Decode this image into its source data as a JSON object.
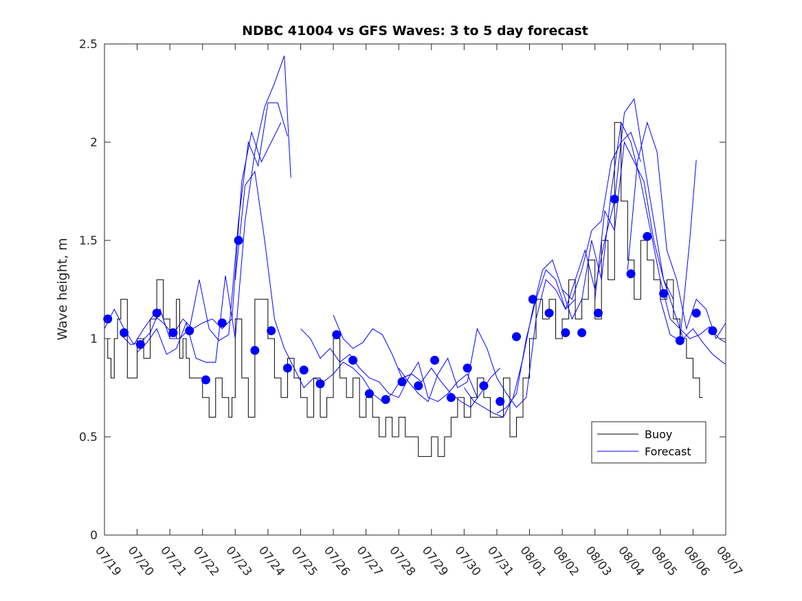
{
  "chart_data": {
    "type": "line",
    "title": "NDBC 41004 vs GFS Waves: 3 to 5 day forecast",
    "xlabel": "",
    "ylabel": "Wave height, m",
    "x_tick_labels": [
      "07/19",
      "07/20",
      "07/21",
      "07/22",
      "07/23",
      "07/24",
      "07/25",
      "07/26",
      "07/27",
      "07/28",
      "07/29",
      "07/30",
      "07/31",
      "08/01",
      "08/02",
      "08/03",
      "08/04",
      "08/05",
      "08/06",
      "08/07"
    ],
    "x_range_days": [
      0,
      19
    ],
    "ylim": [
      0,
      2.5
    ],
    "y_ticks": [
      0,
      0.5,
      1,
      1.5,
      2,
      2.5
    ],
    "y_tick_labels": [
      "0",
      "0.5",
      "1",
      "1.5",
      "2",
      "2.5"
    ],
    "grid": false,
    "legend": {
      "position": "bottom-right",
      "entries": [
        {
          "label": "Buoy",
          "color": "#000000"
        },
        {
          "label": "Forecast",
          "color": "#0000ff"
        }
      ]
    },
    "series": [
      {
        "name": "Buoy",
        "color": "#000000",
        "style": "step-line",
        "x": [
          0.0,
          0.1,
          0.2,
          0.3,
          0.4,
          0.5,
          0.7,
          0.9,
          1.0,
          1.2,
          1.4,
          1.6,
          1.8,
          2.0,
          2.2,
          2.3,
          2.4,
          2.5,
          2.6,
          2.8,
          3.0,
          3.2,
          3.4,
          3.6,
          3.8,
          3.9,
          4.0,
          4.2,
          4.4,
          4.6,
          4.8,
          5.0,
          5.2,
          5.4,
          5.6,
          5.8,
          6.0,
          6.2,
          6.4,
          6.6,
          6.8,
          7.0,
          7.2,
          7.4,
          7.6,
          7.8,
          8.0,
          8.2,
          8.4,
          8.6,
          8.8,
          9.0,
          9.2,
          9.4,
          9.6,
          9.8,
          10.0,
          10.2,
          10.4,
          10.6,
          10.8,
          11.0,
          11.2,
          11.4,
          11.6,
          11.8,
          12.0,
          12.2,
          12.4,
          12.6,
          12.8,
          13.0,
          13.2,
          13.4,
          13.6,
          13.8,
          14.0,
          14.2,
          14.4,
          14.6,
          14.8,
          15.0,
          15.2,
          15.4,
          15.6,
          15.8,
          16.0,
          16.2,
          16.4,
          16.6,
          16.8,
          17.0,
          17.2,
          17.4,
          17.6,
          17.8,
          18.0,
          18.2
        ],
        "y": [
          1.0,
          0.9,
          0.8,
          1.0,
          1.1,
          1.2,
          0.8,
          0.8,
          1.0,
          0.9,
          1.1,
          1.3,
          1.1,
          1.0,
          1.2,
          0.9,
          1.0,
          0.9,
          0.8,
          0.8,
          0.7,
          0.6,
          0.8,
          0.7,
          0.6,
          0.7,
          1.1,
          0.8,
          0.6,
          1.2,
          1.2,
          1.0,
          0.8,
          0.7,
          0.9,
          0.8,
          0.7,
          0.6,
          0.8,
          0.6,
          0.7,
          1.0,
          0.8,
          0.7,
          0.8,
          0.6,
          0.7,
          0.6,
          0.5,
          0.6,
          0.5,
          0.6,
          0.5,
          0.5,
          0.4,
          0.4,
          0.5,
          0.4,
          0.5,
          0.6,
          0.7,
          0.6,
          0.7,
          0.8,
          0.7,
          0.6,
          0.6,
          0.8,
          0.5,
          0.6,
          0.8,
          1.0,
          1.2,
          1.1,
          1.2,
          1.0,
          1.1,
          1.3,
          1.1,
          1.2,
          1.4,
          1.1,
          1.5,
          1.3,
          2.1,
          1.7,
          1.4,
          1.2,
          1.5,
          1.4,
          1.3,
          1.2,
          1.3,
          1.1,
          1.0,
          0.9,
          0.8,
          0.7
        ]
      },
      {
        "name": "Forecast",
        "color": "#0000ff",
        "style": "lines",
        "segments": [
          {
            "x": [
              0.0,
              0.3,
              0.6,
              0.9,
              1.2,
              1.5,
              1.8,
              2.1,
              2.4,
              2.7,
              3.0,
              3.3,
              3.6,
              3.9,
              4.2,
              4.5,
              4.8,
              5.1,
              5.4
            ],
            "y": [
              1.05,
              1.15,
              1.05,
              0.97,
              1.05,
              1.12,
              1.08,
              1.02,
              1.1,
              1.05,
              1.08,
              1.1,
              1.05,
              1.1,
              1.8,
              2.05,
              1.9,
              2.0,
              2.1
            ]
          },
          {
            "x": [
              0.5,
              0.8,
              1.1,
              1.4,
              1.7,
              2.0,
              2.3,
              2.6,
              2.9,
              3.2,
              3.5,
              3.8,
              4.1,
              4.4,
              4.7,
              5.0,
              5.3,
              5.6
            ],
            "y": [
              1.02,
              0.97,
              0.98,
              1.03,
              1.15,
              1.0,
              1.0,
              1.05,
              1.3,
              1.05,
              0.99,
              1.02,
              1.6,
              2.0,
              1.88,
              2.2,
              2.2,
              2.03
            ]
          },
          {
            "x": [
              1.0,
              1.3,
              1.6,
              1.9,
              2.2,
              2.5,
              2.8,
              3.1,
              3.4,
              3.7,
              4.0,
              4.3,
              4.6,
              4.9,
              5.2,
              5.5,
              5.7
            ],
            "y": [
              0.93,
              0.98,
              1.05,
              0.92,
              0.95,
              1.08,
              0.9,
              0.88,
              0.88,
              1.32,
              1.0,
              1.6,
              1.95,
              2.18,
              2.3,
              2.44,
              1.82
            ]
          },
          {
            "x": [
              4.0,
              4.3,
              4.6,
              4.9,
              5.2,
              5.5,
              5.8,
              6.1,
              6.4,
              6.7,
              7.0,
              7.3,
              7.6,
              7.9,
              8.2,
              8.5,
              8.8,
              9.1,
              9.4
            ],
            "y": [
              1.3,
              1.78,
              1.85,
              1.5,
              1.1,
              0.95,
              0.85,
              0.75,
              0.8,
              0.78,
              0.82,
              0.88,
              0.85,
              0.8,
              0.72,
              0.68,
              0.72,
              0.8,
              0.82
            ]
          },
          {
            "x": [
              6.0,
              6.3,
              6.6,
              6.9,
              7.2,
              7.5,
              7.8,
              8.1,
              8.4,
              8.7,
              9.0,
              9.3,
              9.6,
              9.9,
              10.2,
              10.5,
              10.8,
              11.1,
              11.4
            ],
            "y": [
              1.05,
              1.0,
              0.9,
              0.95,
              0.88,
              0.92,
              0.85,
              0.8,
              0.78,
              0.72,
              0.7,
              0.8,
              0.88,
              0.7,
              0.68,
              0.72,
              0.78,
              0.82,
              0.7
            ]
          },
          {
            "x": [
              7.0,
              7.3,
              7.6,
              7.9,
              8.2,
              8.5,
              8.8,
              9.1,
              9.4,
              9.7,
              10.0,
              10.3,
              10.6,
              10.9,
              11.2,
              11.5,
              11.8,
              12.1
            ],
            "y": [
              1.12,
              1.0,
              0.95,
              0.98,
              1.05,
              1.02,
              0.92,
              0.8,
              0.82,
              0.78,
              0.85,
              0.78,
              0.72,
              0.68,
              0.65,
              0.72,
              0.8,
              0.85
            ]
          },
          {
            "x": [
              9.0,
              9.3,
              9.6,
              9.9,
              10.2,
              10.5,
              10.8,
              11.1,
              11.4,
              11.7,
              12.0,
              12.3,
              12.6,
              12.9,
              13.2,
              13.5,
              13.8,
              14.1,
              14.4
            ],
            "y": [
              0.85,
              0.78,
              0.72,
              0.68,
              0.82,
              0.9,
              0.75,
              0.78,
              1.05,
              0.95,
              0.8,
              0.72,
              0.65,
              0.7,
              1.1,
              1.3,
              1.25,
              1.15,
              1.2
            ]
          },
          {
            "x": [
              11.0,
              11.3,
              11.6,
              11.9,
              12.2,
              12.5,
              12.8,
              13.1,
              13.4,
              13.7,
              14.0,
              14.3,
              14.6,
              14.9,
              15.2,
              15.5,
              15.8,
              16.1,
              16.4
            ],
            "y": [
              0.75,
              0.68,
              0.65,
              0.62,
              0.6,
              0.7,
              0.9,
              1.15,
              1.35,
              1.4,
              1.25,
              1.2,
              1.35,
              1.55,
              1.6,
              1.9,
              2.0,
              2.05,
              1.9
            ]
          },
          {
            "x": [
              12.0,
              12.3,
              12.6,
              12.9,
              13.2,
              13.5,
              13.8,
              14.1,
              14.4,
              14.7,
              15.0,
              15.3,
              15.6,
              15.9,
              16.2,
              16.5,
              16.8,
              17.1,
              17.4
            ],
            "y": [
              0.62,
              0.65,
              0.72,
              1.0,
              1.2,
              1.35,
              1.3,
              1.15,
              1.3,
              1.45,
              1.25,
              1.5,
              1.7,
              2.15,
              2.22,
              1.9,
              1.6,
              1.3,
              1.2
            ]
          },
          {
            "x": [
              14.0,
              14.3,
              14.6,
              14.9,
              15.2,
              15.5,
              15.8,
              16.1,
              16.4,
              16.7,
              17.0,
              17.3,
              17.6,
              17.9,
              18.2,
              18.5,
              18.8,
              19.0
            ],
            "y": [
              1.25,
              1.1,
              1.2,
              1.5,
              1.3,
              1.75,
              2.1,
              2.0,
              1.8,
              1.55,
              1.3,
              1.1,
              1.05,
              1.0,
              1.02,
              1.06,
              1.0,
              0.98
            ]
          },
          {
            "x": [
              15.0,
              15.3,
              15.6,
              15.9,
              16.2,
              16.5,
              16.8,
              17.1,
              17.4,
              17.7,
              18.0,
              18.3,
              18.6,
              18.9,
              19.0
            ],
            "y": [
              1.2,
              1.65,
              1.55,
              2.0,
              1.9,
              1.8,
              1.5,
              1.3,
              1.15,
              1.0,
              1.05,
              0.98,
              0.92,
              0.88,
              0.87
            ]
          },
          {
            "x": [
              16.0,
              16.3,
              16.6,
              16.9,
              17.2,
              17.5,
              17.8,
              18.1,
              18.4,
              18.7,
              19.0
            ],
            "y": [
              1.35,
              1.9,
              2.1,
              1.95,
              1.45,
              1.3,
              1.05,
              1.2,
              1.15,
              1.0,
              1.08
            ]
          },
          {
            "x": [
              17.0,
              17.3,
              17.6,
              17.9,
              18.1
            ],
            "y": [
              1.2,
              1.02,
              0.99,
              1.5,
              1.91
            ]
          }
        ]
      },
      {
        "name": "Forecast",
        "color": "#0000ff",
        "style": "markers",
        "x": [
          0.1,
          0.6,
          1.1,
          1.6,
          2.1,
          2.6,
          3.1,
          3.6,
          4.1,
          4.6,
          5.1,
          5.6,
          6.1,
          6.6,
          7.1,
          7.6,
          8.1,
          8.6,
          9.1,
          9.6,
          10.1,
          10.6,
          11.1,
          11.6,
          12.1,
          12.6,
          13.1,
          13.6,
          14.1,
          14.6,
          15.1,
          15.6,
          16.1,
          16.6,
          17.1,
          17.6,
          18.1,
          18.6
        ],
        "y": [
          1.1,
          1.03,
          0.97,
          1.13,
          1.03,
          1.04,
          0.79,
          1.08,
          1.5,
          0.94,
          1.04,
          0.85,
          0.84,
          0.77,
          1.02,
          0.89,
          0.72,
          0.69,
          0.78,
          0.76,
          0.89,
          0.7,
          0.85,
          0.76,
          0.68,
          1.01,
          1.2,
          1.13,
          1.03,
          1.03,
          1.13,
          1.71,
          1.33,
          1.52,
          1.23,
          0.99,
          1.13,
          1.04
        ]
      }
    ]
  }
}
